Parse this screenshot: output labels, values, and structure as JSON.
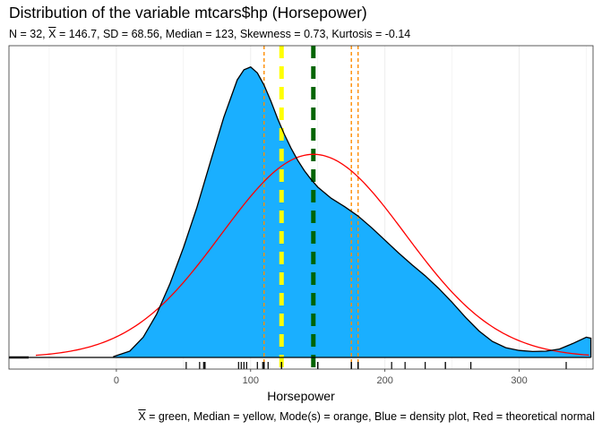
{
  "chart_data": {
    "type": "area",
    "title": "Distribution of the variable mtcars$hp (Horsepower)",
    "subtitle": {
      "n_label": "N = 32,",
      "mean_symbol": "X",
      "rest": "= 146.7, SD = 68.56, Median = 123, Skewness = 0.73, Kurtosis = -0.14"
    },
    "xlabel": "Horsepower",
    "ylabel": "",
    "xlim": [
      -80,
      355
    ],
    "x_ticks": [
      0,
      100,
      200,
      300
    ],
    "grid": true,
    "caption": {
      "mean_symbol": "X",
      "rest": " = green, Median = yellow, Mode(s) = orange, Blue = density plot, Red = theoretical normal"
    },
    "stats": {
      "n": 32,
      "mean": 146.7,
      "sd": 68.56,
      "median": 123,
      "skewness": 0.73,
      "kurtosis": -0.14,
      "modes": [
        110,
        175,
        180
      ]
    },
    "density_curve": {
      "x": [
        -2.4,
        10,
        20,
        30,
        40,
        50,
        60,
        70,
        80,
        90,
        95,
        100,
        105,
        110,
        115,
        120,
        125,
        130,
        135,
        140,
        145,
        150,
        160,
        170,
        180,
        190,
        200,
        210,
        220,
        230,
        240,
        250,
        260,
        270,
        280,
        290,
        300,
        310,
        320,
        330,
        340,
        350,
        353.4
      ],
      "y": [
        2e-05,
        0.00018,
        0.00058,
        0.00124,
        0.00212,
        0.00315,
        0.0043,
        0.0056,
        0.00688,
        0.00795,
        0.00824,
        0.00832,
        0.00815,
        0.0078,
        0.00735,
        0.00685,
        0.0064,
        0.006,
        0.00565,
        0.00535,
        0.0051,
        0.00488,
        0.00456,
        0.00432,
        0.00405,
        0.00372,
        0.00336,
        0.003,
        0.00266,
        0.00234,
        0.00198,
        0.00158,
        0.00115,
        0.00076,
        0.00046,
        0.00028,
        0.0002,
        0.00017,
        0.00018,
        0.00024,
        0.0004,
        0.00058,
        0.00055
      ]
    },
    "ylim": [
      0,
      0.0087
    ],
    "normal_curve": {
      "mean": 146.7,
      "sd": 68.56,
      "x_range": [
        -60,
        352
      ]
    },
    "rug": [
      52,
      62,
      65,
      66,
      66,
      91,
      93,
      95,
      97,
      105,
      109,
      110,
      110,
      110,
      113,
      123,
      123,
      150,
      150,
      175,
      175,
      175,
      180,
      180,
      180,
      205,
      215,
      230,
      245,
      245,
      264,
      335
    ],
    "colors": {
      "density_fill": "#1aafff",
      "density_line": "#000000",
      "normal": "#ff0000",
      "mean": "#006400",
      "median": "#ffff00",
      "mode": "#ff8c00",
      "grid": "#ebebeb",
      "panel_border": "#333333"
    }
  }
}
